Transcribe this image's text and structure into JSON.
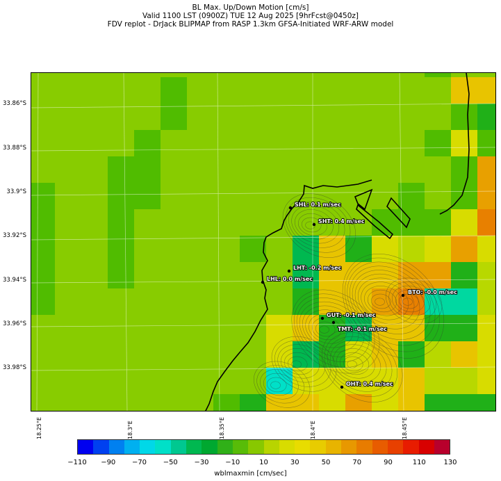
{
  "title_lines": [
    "BL Max. Up/Down Motion [cm/s]",
    "Valid 1100 LST (0900Z) TUE 12 Aug 2025 [9hrFcst@0450z]",
    "FDV replot - DrJack BLIPMAP from RASP 1.3km GFSA-Initiated WRF-ARW model"
  ],
  "lat_labels": [
    "33.86°S",
    "33.88°S",
    "33.9°S",
    "33.92°S",
    "33.94°S",
    "33.96°S",
    "33.98°S"
  ],
  "lon_labels": [
    "18.25°E",
    "18.3°E",
    "18.35°E",
    "18.4°E",
    "18.45°E"
  ],
  "stations": [
    {
      "id": "SHL",
      "label": "SHL: 0.1 m/sec"
    },
    {
      "id": "SHT",
      "label": "SHT: 0.4 m/sec"
    },
    {
      "id": "LHT",
      "label": "LHT: -0.2 m/sec"
    },
    {
      "id": "LHL",
      "label": "LHL: 0.0 m/sec"
    },
    {
      "id": "BTO",
      "label": "BTO: -0.0 m/sec"
    },
    {
      "id": "GUT",
      "label": "GUT: -0.1 m/sec"
    },
    {
      "id": "TMT",
      "label": "TMT: -0.1 m/sec"
    },
    {
      "id": "OHT",
      "label": "OHT: 0.4 m/sec"
    }
  ],
  "colorbar": {
    "label": "wblmaxmin [cm/sec]",
    "ticks": [
      "−110",
      "−90",
      "−70",
      "−50",
      "−30",
      "−10",
      "10",
      "30",
      "50",
      "70",
      "90",
      "110",
      "130"
    ],
    "colors": [
      "#0000f0",
      "#0040f0",
      "#0080f0",
      "#00b0f0",
      "#00d8e8",
      "#00e0c8",
      "#00c890",
      "#00b850",
      "#00a830",
      "#30b018",
      "#58bc08",
      "#88c800",
      "#b8d400",
      "#d8dc00",
      "#e8dc00",
      "#e8cc00",
      "#e8b400",
      "#e89800",
      "#e87c00",
      "#e85c00",
      "#e84000",
      "#e81c00",
      "#d80000",
      "#b8002c"
    ]
  },
  "map_colors": {
    "bg": "#88cc00",
    "g1": "#50bc00",
    "g2": "#20b018",
    "g3": "#00b850",
    "teal": "#00d8a0",
    "cyan": "#00e0c8",
    "ly": "#b8d800",
    "y1": "#d8dc00",
    "y2": "#e8c400",
    "o1": "#e8a000",
    "o2": "#e88000"
  }
}
